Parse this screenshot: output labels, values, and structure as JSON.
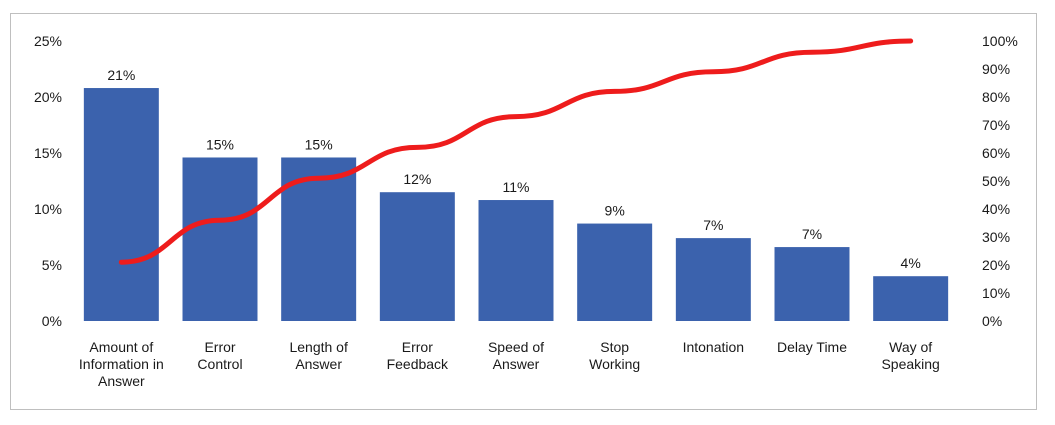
{
  "chart_data": {
    "type": "bar",
    "categories": [
      [
        "Amount of",
        "Information in",
        "Answer"
      ],
      [
        "Error",
        "Control"
      ],
      [
        "Length of",
        "Answer"
      ],
      [
        "Error",
        "Feedback"
      ],
      [
        "Speed of",
        "Answer"
      ],
      [
        "Stop",
        "Working"
      ],
      [
        "Intonation"
      ],
      [
        "Delay Time"
      ],
      [
        "Way of",
        "Speaking"
      ]
    ],
    "series": [
      {
        "type": "bar",
        "axis": "left",
        "color": "#3b62ad",
        "values": [
          20.8,
          14.6,
          14.6,
          11.5,
          10.8,
          8.7,
          7.4,
          6.6,
          4.0
        ],
        "data_labels": [
          "21%",
          "15%",
          "15%",
          "12%",
          "11%",
          "9%",
          "7%",
          "7%",
          "4%"
        ]
      },
      {
        "type": "line",
        "axis": "right",
        "color": "#ee1c1c",
        "values": [
          21,
          36,
          51,
          62,
          73,
          82,
          89,
          96,
          100
        ]
      }
    ],
    "y_left": {
      "min": 0,
      "max": 25,
      "ticks": [
        "0%",
        "5%",
        "10%",
        "15%",
        "20%",
        "25%"
      ]
    },
    "y_right": {
      "min": 0,
      "max": 100,
      "ticks": [
        "0%",
        "10%",
        "20%",
        "30%",
        "40%",
        "50%",
        "60%",
        "70%",
        "80%",
        "90%",
        "100%"
      ]
    },
    "grid": false,
    "legend": "none"
  }
}
